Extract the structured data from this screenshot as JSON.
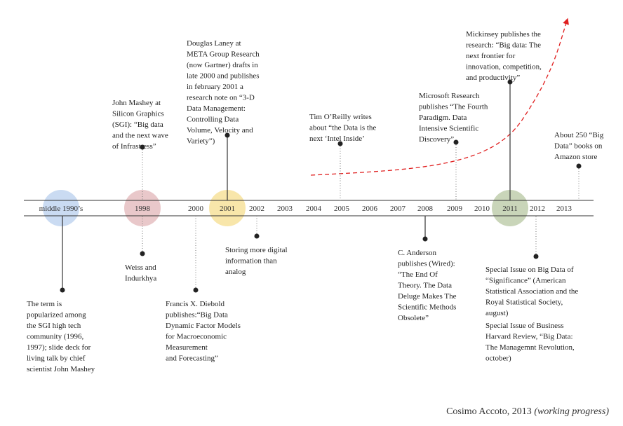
{
  "timeline": {
    "labels": [
      "middle 1990’s",
      "1998",
      "2000",
      "2001",
      "2002",
      "2003",
      "2004",
      "2005",
      "2006",
      "2007",
      "2008",
      "2009",
      "2010",
      "2011",
      "2012",
      "2013"
    ]
  },
  "events": [
    {
      "lines": [
        "John Mashey at",
        "Silicon Graphics",
        "(SGI): “Big data",
        "and the next wave",
        "of Infrastress”"
      ]
    },
    {
      "lines": [
        "Douglas Laney at",
        "META Group Research",
        "(now Gartner) drafts in",
        "late 2000 and publishes",
        "in february 2001 a",
        "research note on “3-D",
        "Data Management:",
        "Controlling Data",
        "Volume, Velocity and",
        "Variety”)"
      ]
    },
    {
      "lines": [
        "Tim O’Reilly writes",
        "about “the Data is the",
        "next ‘Intel Inside’"
      ]
    },
    {
      "lines": [
        "Microsoft Research",
        "publishes “The Fourth",
        "Paradigm. Data",
        "Intensive Scientific",
        "Discovery”"
      ]
    },
    {
      "lines": [
        "Mickinsey publishes the",
        "research: “Big data: The",
        "next frontier for",
        "innovation, competition,",
        "and productivity”"
      ]
    },
    {
      "lines": [
        "About 250 “Big",
        "Data” books on",
        "Amazon store"
      ]
    },
    {
      "lines": [
        "The term is",
        "popularized among",
        "the SGI high tech",
        "community (1996,",
        "1997); slide deck for",
        "living talk by chief",
        "scientist John Mashey"
      ]
    },
    {
      "lines": [
        "Weiss and",
        "Indurkhya"
      ]
    },
    {
      "lines": [
        "Francis X. Diebold",
        "publishes:“Big Data",
        "Dynamic Factor Models",
        "for Macroeconomic",
        "Measurement",
        "and Forecasting”"
      ]
    },
    {
      "lines": [
        "Storing more digital",
        "information than",
        "analog"
      ]
    },
    {
      "lines": [
        "C. Anderson",
        "publishes (Wired):",
        "“The End Of",
        "Theory. The Data",
        "Deluge Makes The",
        "Scientific Methods",
        "Obsolete”"
      ]
    },
    {
      "lines": [
        "Special Issue on Big Data of",
        "“Significance” (American",
        "Statistical Association and the",
        "Royal Statistical Society,",
        "august)"
      ]
    },
    {
      "lines": [
        "Special Issue of Business",
        "Harvard Review, “Big Data:",
        "The Managemnt Revolution,",
        "october)"
      ]
    }
  ],
  "credit": {
    "author": "Cosimo Accoto, 2013",
    "note": "(working progress)"
  }
}
